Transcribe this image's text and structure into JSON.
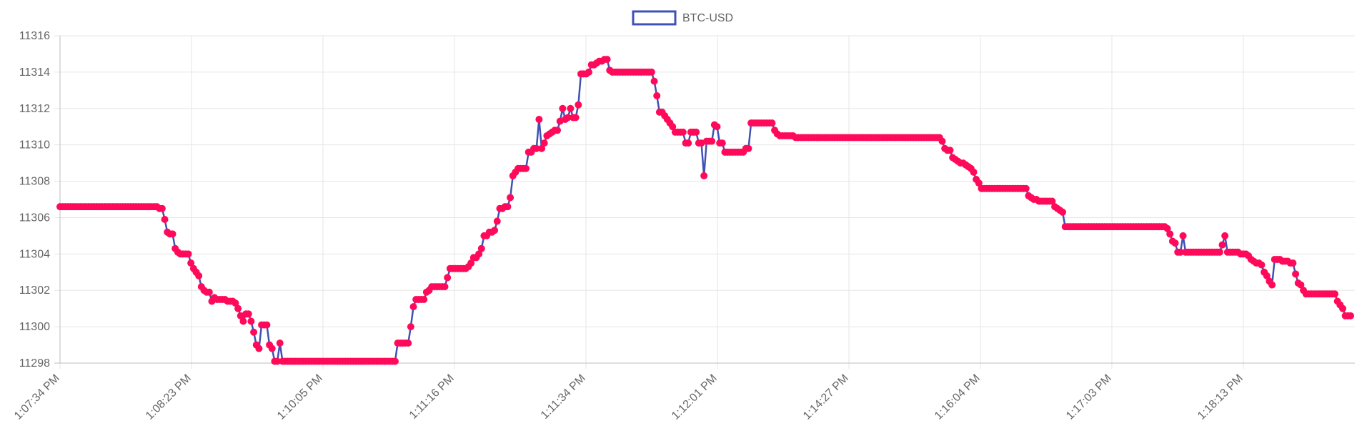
{
  "chart_data": {
    "type": "line",
    "legend": {
      "label": "BTC-USD",
      "placement": "top-center"
    },
    "ylim": [
      11298,
      11316
    ],
    "yticks": [
      11298,
      11300,
      11302,
      11304,
      11306,
      11308,
      11310,
      11312,
      11314,
      11316
    ],
    "x_tick_labels": [
      "1:07:34 PM",
      "1:08:23 PM",
      "1:10:05 PM",
      "1:11:16 PM",
      "1:11:34 PM",
      "1:12:01 PM",
      "1:14:27 PM",
      "1:16:04 PM",
      "1:17:03 PM",
      "1:18:13 PM"
    ],
    "grid": true,
    "series": [
      {
        "name": "BTC-USD",
        "line_color": "#3f51b5",
        "point_color": "#ff0a5a",
        "values": [
          11306.6,
          11306.6,
          11306.6,
          11306.6,
          11306.6,
          11306.6,
          11306.6,
          11306.6,
          11306.6,
          11306.6,
          11306.6,
          11306.6,
          11306.6,
          11306.6,
          11306.6,
          11306.6,
          11306.6,
          11306.6,
          11306.6,
          11306.6,
          11306.6,
          11306.6,
          11306.6,
          11306.6,
          11306.6,
          11306.6,
          11306.6,
          11306.6,
          11306.6,
          11306.6,
          11306.6,
          11306.6,
          11306.6,
          11306.6,
          11306.6,
          11306.6,
          11306.6,
          11306.6,
          11306.5,
          11306.5,
          11305.9,
          11305.2,
          11305.1,
          11305.1,
          11304.3,
          11304.1,
          11304.0,
          11304.0,
          11304.0,
          11304.0,
          11303.5,
          11303.2,
          11303.0,
          11302.8,
          11302.2,
          11302.0,
          11301.9,
          11301.9,
          11301.4,
          11301.6,
          11301.5,
          11301.5,
          11301.5,
          11301.5,
          11301.4,
          11301.4,
          11301.4,
          11301.3,
          11301.0,
          11300.6,
          11300.3,
          11300.7,
          11300.7,
          11300.3,
          11299.7,
          11299.0,
          11298.8,
          11300.1,
          11300.1,
          11300.1,
          11299.0,
          11298.8,
          11298.1,
          11298.1,
          11299.1,
          11298.1,
          11298.1,
          11298.1,
          11298.1,
          11298.1,
          11298.1,
          11298.1,
          11298.1,
          11298.1,
          11298.1,
          11298.1,
          11298.1,
          11298.1,
          11298.1,
          11298.1,
          11298.1,
          11298.1,
          11298.1,
          11298.1,
          11298.1,
          11298.1,
          11298.1,
          11298.1,
          11298.1,
          11298.1,
          11298.1,
          11298.1,
          11298.1,
          11298.1,
          11298.1,
          11298.1,
          11298.1,
          11298.1,
          11298.1,
          11298.1,
          11298.1,
          11298.1,
          11298.1,
          11298.1,
          11298.1,
          11298.1,
          11298.1,
          11298.1,
          11298.1,
          11299.1,
          11299.1,
          11299.1,
          11299.1,
          11299.1,
          11300.0,
          11301.1,
          11301.5,
          11301.5,
          11301.5,
          11301.5,
          11301.9,
          11302.0,
          11302.2,
          11302.2,
          11302.2,
          11302.2,
          11302.2,
          11302.2,
          11302.7,
          11303.2,
          11303.2,
          11303.2,
          11303.2,
          11303.2,
          11303.2,
          11303.2,
          11303.3,
          11303.5,
          11303.8,
          11303.8,
          11304.0,
          11304.3,
          11305.0,
          11305.0,
          11305.2,
          11305.2,
          11305.3,
          11305.8,
          11306.5,
          11306.5,
          11306.6,
          11306.6,
          11307.1,
          11308.3,
          11308.5,
          11308.7,
          11308.7,
          11308.7,
          11308.7,
          11309.6,
          11309.6,
          11309.8,
          11309.8,
          11311.4,
          11309.8,
          11310.1,
          11310.5,
          11310.6,
          11310.7,
          11310.8,
          11310.8,
          11311.3,
          11312.0,
          11311.4,
          11311.5,
          11312.0,
          11311.5,
          11311.5,
          11312.2,
          11313.9,
          11313.9,
          11313.9,
          11314.0,
          11314.4,
          11314.4,
          11314.5,
          11314.6,
          11314.6,
          11314.7,
          11314.7,
          11314.1,
          11314.0,
          11314.0,
          11314.0,
          11314.0,
          11314.0,
          11314.0,
          11314.0,
          11314.0,
          11314.0,
          11314.0,
          11314.0,
          11314.0,
          11314.0,
          11314.0,
          11314.0,
          11314.0,
          11313.5,
          11312.7,
          11311.8,
          11311.8,
          11311.6,
          11311.4,
          11311.2,
          11311.0,
          11310.7,
          11310.7,
          11310.7,
          11310.7,
          11310.1,
          11310.1,
          11310.7,
          11310.7,
          11310.7,
          11310.1,
          11310.1,
          11308.3,
          11310.2,
          11310.2,
          11310.2,
          11311.1,
          11311.0,
          11310.1,
          11310.1,
          11309.6,
          11309.6,
          11309.6,
          11309.6,
          11309.6,
          11309.6,
          11309.6,
          11309.6,
          11309.8,
          11309.8,
          11311.2,
          11311.2,
          11311.2,
          11311.2,
          11311.2,
          11311.2,
          11311.2,
          11311.2,
          11311.2,
          11310.8,
          11310.6,
          11310.5,
          11310.5,
          11310.5,
          11310.5,
          11310.5,
          11310.5,
          11310.4,
          11310.4,
          11310.4,
          11310.4,
          11310.4,
          11310.4,
          11310.4,
          11310.4,
          11310.4,
          11310.4,
          11310.4,
          11310.4,
          11310.4,
          11310.4,
          11310.4,
          11310.4,
          11310.4,
          11310.4,
          11310.4,
          11310.4,
          11310.4,
          11310.4,
          11310.4,
          11310.4,
          11310.4,
          11310.4,
          11310.4,
          11310.4,
          11310.4,
          11310.4,
          11310.4,
          11310.4,
          11310.4,
          11310.4,
          11310.4,
          11310.4,
          11310.4,
          11310.4,
          11310.4,
          11310.4,
          11310.4,
          11310.4,
          11310.4,
          11310.4,
          11310.4,
          11310.4,
          11310.4,
          11310.4,
          11310.4,
          11310.4,
          11310.4,
          11310.4,
          11310.4,
          11310.4,
          11310.4,
          11310.4,
          11310.2,
          11309.8,
          11309.7,
          11309.7,
          11309.3,
          11309.2,
          11309.1,
          11309.0,
          11309.0,
          11308.9,
          11308.8,
          11308.7,
          11308.5,
          11308.1,
          11307.9,
          11307.6,
          11307.6,
          11307.6,
          11307.6,
          11307.6,
          11307.6,
          11307.6,
          11307.6,
          11307.6,
          11307.6,
          11307.6,
          11307.6,
          11307.6,
          11307.6,
          11307.6,
          11307.6,
          11307.6,
          11307.6,
          11307.2,
          11307.1,
          11307.0,
          11307.0,
          11306.9,
          11306.9,
          11306.9,
          11306.9,
          11306.9,
          11306.9,
          11306.6,
          11306.5,
          11306.4,
          11306.3,
          11305.5,
          11305.5,
          11305.5,
          11305.5,
          11305.5,
          11305.5,
          11305.5,
          11305.5,
          11305.5,
          11305.5,
          11305.5,
          11305.5,
          11305.5,
          11305.5,
          11305.5,
          11305.5,
          11305.5,
          11305.5,
          11305.5,
          11305.5,
          11305.5,
          11305.5,
          11305.5,
          11305.5,
          11305.5,
          11305.5,
          11305.5,
          11305.5,
          11305.5,
          11305.5,
          11305.5,
          11305.5,
          11305.5,
          11305.5,
          11305.5,
          11305.5,
          11305.5,
          11305.5,
          11305.5,
          11305.4,
          11305.1,
          11304.7,
          11304.6,
          11304.1,
          11304.1,
          11305.0,
          11304.1,
          11304.1,
          11304.1,
          11304.1,
          11304.1,
          11304.1,
          11304.1,
          11304.1,
          11304.1,
          11304.1,
          11304.1,
          11304.1,
          11304.1,
          11304.1,
          11304.5,
          11305.0,
          11304.1,
          11304.1,
          11304.1,
          11304.1,
          11304.1,
          11304.0,
          11304.0,
          11304.0,
          11303.9,
          11303.7,
          11303.6,
          11303.5,
          11303.5,
          11303.4,
          11303.0,
          11302.8,
          11302.5,
          11302.3,
          11303.7,
          11303.7,
          11303.7,
          11303.6,
          11303.6,
          11303.6,
          11303.5,
          11303.5,
          11302.9,
          11302.4,
          11302.3,
          11302.0,
          11301.8,
          11301.8,
          11301.8,
          11301.8,
          11301.8,
          11301.8,
          11301.8,
          11301.8,
          11301.8,
          11301.8,
          11301.8,
          11301.8,
          11301.4,
          11301.2,
          11301.0,
          11300.6,
          11300.6,
          11300.6
        ]
      }
    ]
  }
}
